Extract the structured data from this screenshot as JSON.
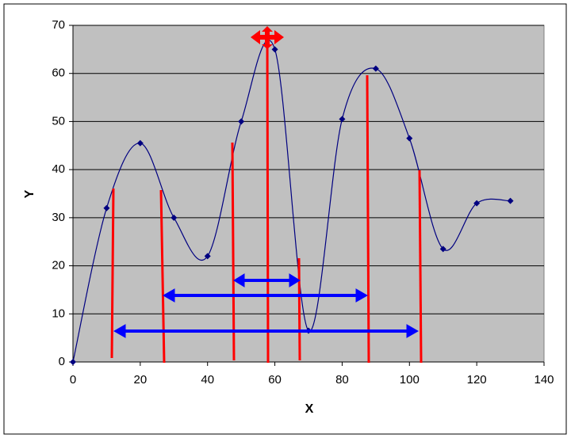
{
  "chart_data": {
    "type": "scatter",
    "x_label": "X",
    "y_label": "Y",
    "series": [
      {
        "color": "#000080",
        "x": [
          0,
          10,
          20,
          30,
          40,
          50,
          60,
          70,
          80,
          90,
          100,
          110,
          120,
          130
        ],
        "values": [
          0,
          32,
          45.5,
          30,
          22,
          50,
          65,
          6.5,
          50.5,
          61,
          46.5,
          23.5,
          33,
          33.5
        ]
      }
    ],
    "xlim": [
      0,
      140
    ],
    "xticks": [
      0,
      20,
      40,
      60,
      80,
      100,
      120,
      140
    ],
    "ylim": [
      0,
      70
    ],
    "yticks": [
      0,
      10,
      20,
      30,
      40,
      50,
      60,
      70
    ],
    "grid": true,
    "plot_background": "#c0c0c0"
  }
}
